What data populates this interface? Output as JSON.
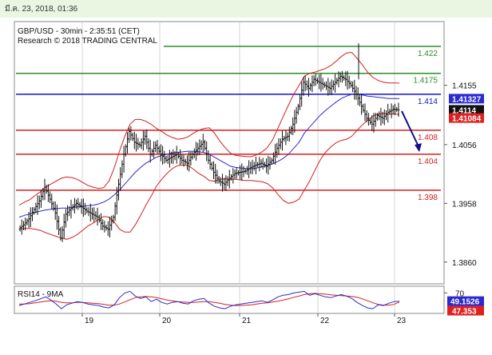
{
  "header": {
    "datetime": "มี.ค. 23, 2018, 01:36"
  },
  "chart_data": {
    "type": "candlestick",
    "title": "GBP/USD - 30min - 2:35:51 (CET)",
    "subtitle": "Research © 2018 TRADING CENTRAL",
    "x_tick_labels": [
      "19",
      "20",
      "21",
      "22",
      "23"
    ],
    "y_tick_labels": [
      "1.4155",
      "1.4056",
      "1.3958",
      "1.3860"
    ],
    "ylim": [
      1.3825,
      1.426
    ],
    "current_price": {
      "label": "1.4114",
      "value": 1.4114
    },
    "ma_label": {
      "label": "1.41327",
      "value": 1.41327
    },
    "lower_band_label": {
      "label": "1.41084",
      "value": 1.41084
    },
    "levels": [
      {
        "label": "1.422",
        "value": 1.422,
        "color": "#2e8b2e"
      },
      {
        "label": "1.4175",
        "value": 1.4175,
        "color": "#2e8b2e"
      },
      {
        "label": "1.414",
        "value": 1.414,
        "color": "#1414c8"
      },
      {
        "label": "1.408",
        "value": 1.408,
        "color": "#d42020"
      },
      {
        "label": "1.404",
        "value": 1.404,
        "color": "#d42020"
      },
      {
        "label": "1.398",
        "value": 1.398,
        "color": "#d42020"
      }
    ],
    "forecast_arrow": {
      "from": 1.4112,
      "to": 1.4045
    },
    "price_path": [
      1.3915,
      1.3922,
      1.3932,
      1.3948,
      1.3962,
      1.3985,
      1.3965,
      1.3942,
      1.39,
      1.394,
      1.395,
      1.3958,
      1.3952,
      1.3945,
      1.394,
      1.3935,
      1.392,
      1.3915,
      1.3935,
      1.399,
      1.404,
      1.4078,
      1.406,
      1.4055,
      1.407,
      1.404,
      1.4055,
      1.404,
      1.403,
      1.4035,
      1.404,
      1.403,
      1.4025,
      1.404,
      1.405,
      1.406,
      1.403,
      1.401,
      1.3995,
      1.399,
      1.4,
      1.4008,
      1.401,
      1.4012,
      1.4018,
      1.4022,
      1.4025,
      1.402,
      1.403,
      1.405,
      1.4065,
      1.407,
      1.409,
      1.412,
      1.416,
      1.415,
      1.4165,
      1.416,
      1.4155,
      1.415,
      1.416,
      1.417,
      1.4165,
      1.4155,
      1.414,
      1.412,
      1.41,
      1.409,
      1.4105,
      1.41,
      1.411,
      1.4115,
      1.4114
    ],
    "ma_path": [
      1.3935,
      1.3938,
      1.394,
      1.3943,
      1.3945,
      1.3947,
      1.3948,
      1.3949,
      1.395,
      1.395,
      1.3951,
      1.3952,
      1.3953,
      1.3954,
      1.3955,
      1.3957,
      1.396,
      1.3965,
      1.3972,
      1.398,
      1.399,
      1.4,
      1.401,
      1.4018,
      1.4025,
      1.403,
      1.4035,
      1.4038,
      1.404,
      1.4042,
      1.4043,
      1.4044,
      1.4045,
      1.4045,
      1.4044,
      1.4043,
      1.404,
      1.4035,
      1.403,
      1.4025,
      1.402,
      1.4018,
      1.4017,
      1.4016,
      1.4016,
      1.4017,
      1.4019,
      1.4021,
      1.4024,
      1.4028,
      1.4033,
      1.404,
      1.405,
      1.406,
      1.4075,
      1.4085,
      1.4095,
      1.4105,
      1.4113,
      1.412,
      1.4127,
      1.4133,
      1.4137,
      1.414,
      1.414,
      1.4139,
      1.4137,
      1.4136,
      1.4135,
      1.4134,
      1.4133,
      1.4133,
      1.41327
    ],
    "band_width": [
      0.002,
      0.0022,
      0.0024,
      0.0028,
      0.0032,
      0.0038,
      0.0042,
      0.0046,
      0.005,
      0.0052,
      0.005,
      0.0046,
      0.004,
      0.0034,
      0.003,
      0.0026,
      0.0024,
      0.003,
      0.0045,
      0.0065,
      0.008,
      0.009,
      0.0088,
      0.008,
      0.007,
      0.006,
      0.0048,
      0.004,
      0.0032,
      0.0026,
      0.0022,
      0.0022,
      0.0024,
      0.003,
      0.0036,
      0.004,
      0.0044,
      0.004,
      0.0032,
      0.0026,
      0.0022,
      0.002,
      0.002,
      0.002,
      0.002,
      0.0022,
      0.0025,
      0.003,
      0.004,
      0.0055,
      0.007,
      0.0082,
      0.009,
      0.0095,
      0.0095,
      0.009,
      0.0082,
      0.0075,
      0.007,
      0.0068,
      0.0068,
      0.007,
      0.0072,
      0.007,
      0.006,
      0.005,
      0.004,
      0.0032,
      0.0028,
      0.0026,
      0.0026,
      0.0026,
      0.0026
    ],
    "rsi": {
      "title": "RSI14 - 9MA",
      "y_tick_labels": [
        "70"
      ],
      "ylim": [
        20,
        85
      ],
      "rsi_label": {
        "label": "49.1526",
        "value": 49.1526
      },
      "ma_label": {
        "label": "47.353",
        "value": 47.353
      },
      "rsi_path": [
        38,
        42,
        46,
        50,
        55,
        60,
        52,
        42,
        30,
        40,
        44,
        48,
        46,
        42,
        40,
        38,
        34,
        32,
        40,
        58,
        70,
        74,
        62,
        56,
        60,
        48,
        54,
        46,
        42,
        46,
        48,
        44,
        42,
        50,
        54,
        56,
        44,
        36,
        32,
        30,
        36,
        40,
        42,
        44,
        46,
        48,
        50,
        46,
        52,
        60,
        64,
        66,
        70,
        72,
        74,
        64,
        68,
        64,
        60,
        58,
        62,
        66,
        62,
        56,
        46,
        38,
        32,
        30,
        40,
        38,
        44,
        48,
        49
      ],
      "ma_path": [
        42,
        42,
        43,
        45,
        47,
        49,
        50,
        49,
        46,
        45,
        45,
        46,
        46,
        45,
        44,
        43,
        41,
        39,
        39,
        42,
        47,
        53,
        58,
        60,
        61,
        60,
        58,
        55,
        52,
        50,
        48,
        47,
        46,
        46,
        47,
        48,
        48,
        46,
        44,
        41,
        39,
        38,
        38,
        39,
        40,
        42,
        44,
        45,
        47,
        49,
        52,
        55,
        59,
        62,
        66,
        68,
        69,
        68,
        67,
        65,
        64,
        63,
        62,
        61,
        59,
        55,
        50,
        45,
        41,
        39,
        39,
        41,
        47
      ]
    }
  }
}
